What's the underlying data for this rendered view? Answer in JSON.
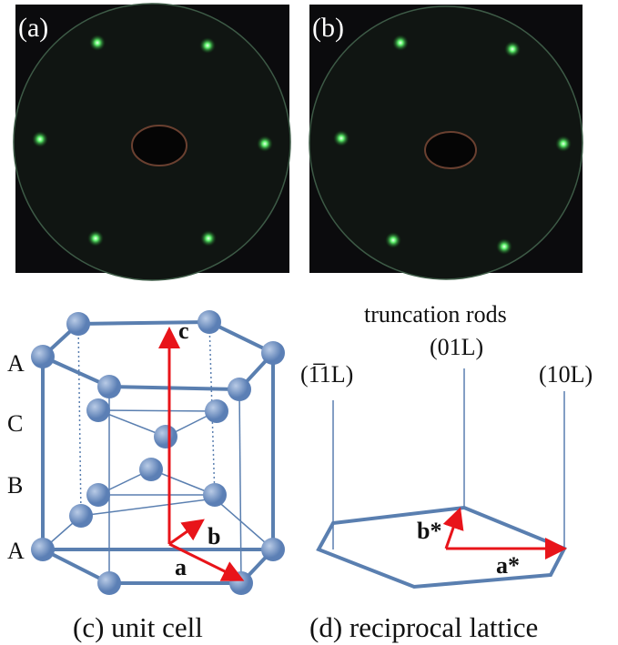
{
  "panels": [
    {
      "label": "(a)"
    },
    {
      "label": "(b)"
    }
  ],
  "unit_cell": {
    "layer_labels": [
      "A",
      "C",
      "B",
      "A"
    ],
    "vectors": [
      "c",
      "b",
      "a"
    ],
    "caption": "(c) unit cell"
  },
  "reciprocal": {
    "title": "truncation rods",
    "rod_labels": [
      "(1̅1L)",
      "(01L)",
      "(10L)"
    ],
    "vectors": [
      "b*",
      "a*"
    ],
    "caption": "(d) reciprocal lattice"
  }
}
